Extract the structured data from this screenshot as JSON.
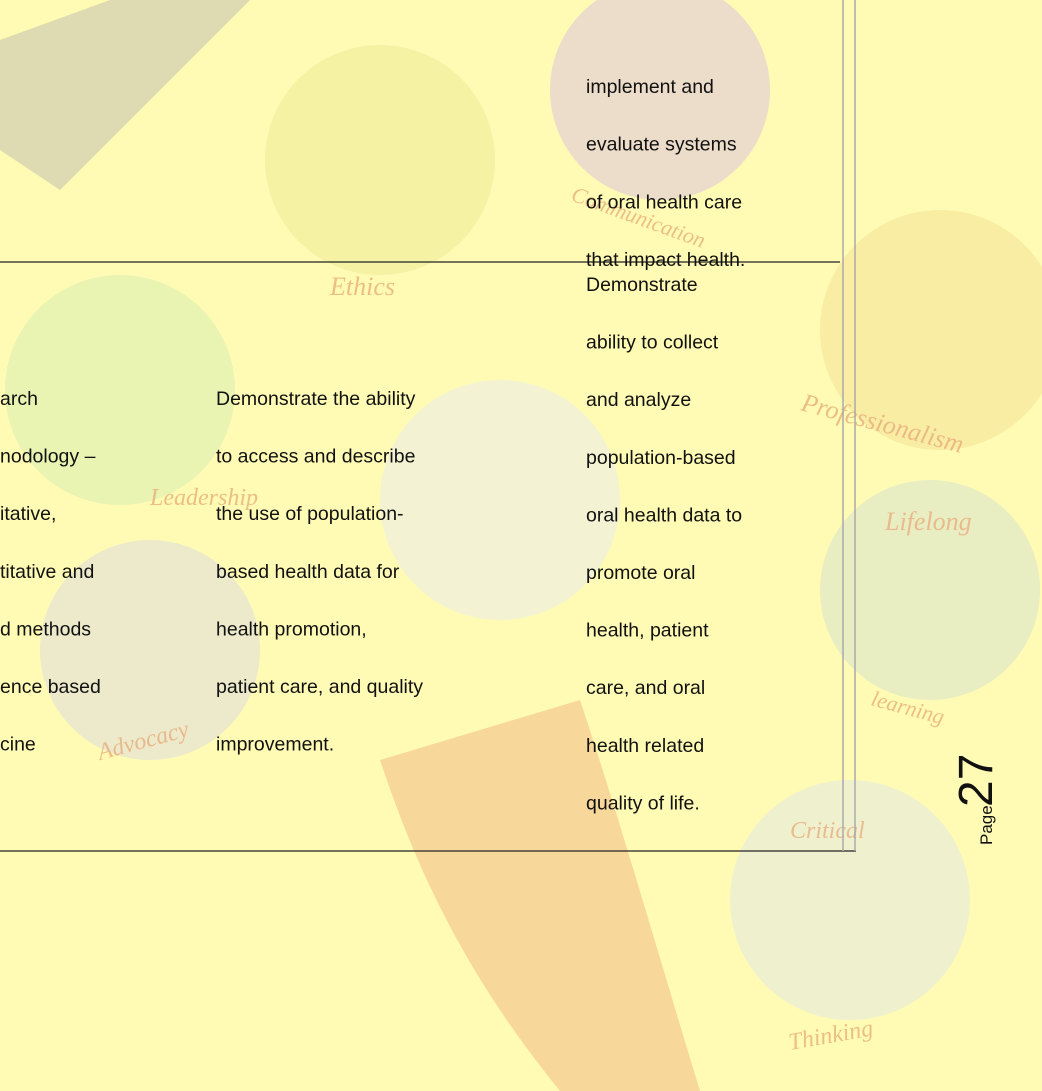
{
  "table": {
    "rows": [
      {
        "cells": [
          {
            "lines": []
          },
          {
            "lines": []
          },
          {
            "lines": [
              "implement and",
              "evaluate systems",
              "of oral health care",
              "that impact health."
            ]
          }
        ]
      },
      {
        "cells": [
          {
            "lines": [
              "arch",
              "nodology –",
              "itative,",
              "titative and",
              "d methods",
              "ence based",
              "cine"
            ]
          },
          {
            "lines": [
              "Demonstrate the ability",
              "to access and describe",
              "the use of population-",
              "based health data for",
              "health promotion,",
              "patient care, and quality",
              "improvement."
            ]
          },
          {
            "lines": [
              "Demonstrate",
              "ability to collect",
              "and analyze",
              "population-based",
              "oral health data to",
              "promote oral",
              "health, patient",
              "care, and oral",
              "health related",
              "quality of life."
            ]
          }
        ]
      }
    ]
  },
  "footer": {
    "page_word": "Page",
    "page_number": "27"
  },
  "watermarks": [
    "Ethics",
    "Leadership",
    "Advocacy",
    "Professionalism",
    "Lifelong",
    "learning",
    "Critical",
    "Thinking",
    "Communication"
  ]
}
